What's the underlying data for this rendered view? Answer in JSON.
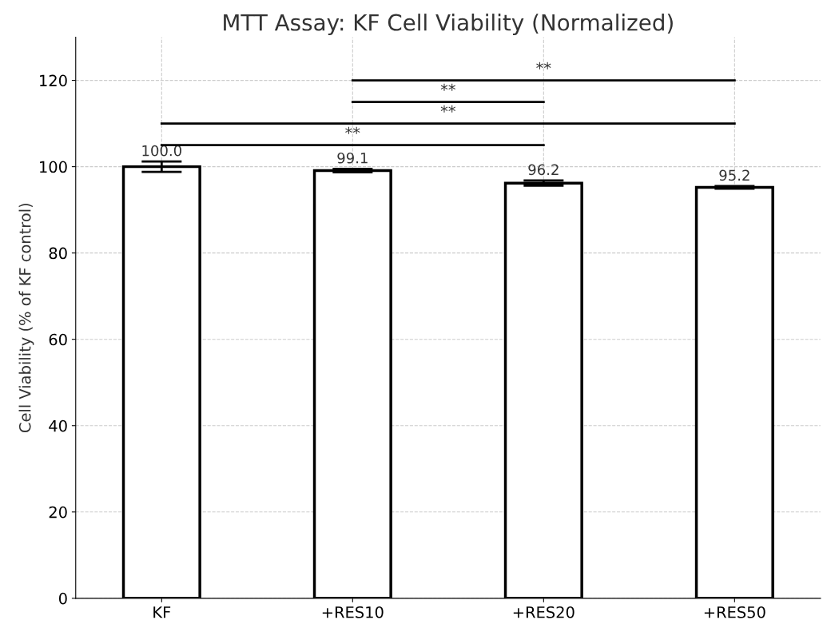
{
  "chart_data": {
    "type": "bar",
    "title": "MTT Assay: KF Cell Viability (Normalized)",
    "ylabel": "Cell Viability (% of KF control)",
    "categories": [
      "KF",
      "+RES10",
      "+RES20",
      "+RES50"
    ],
    "values": [
      100.0,
      99.1,
      96.2,
      95.2
    ],
    "errors": [
      1.2,
      0.4,
      0.6,
      0.3
    ],
    "value_labels": [
      "100.0",
      "99.1",
      "96.2",
      "95.2"
    ],
    "color": "#ffffff",
    "ylim": [
      0,
      130
    ],
    "yticks": [
      0,
      20,
      40,
      60,
      80,
      100,
      120
    ],
    "grid": true,
    "annotations": [
      "**",
      "**",
      "**",
      "**"
    ]
  }
}
